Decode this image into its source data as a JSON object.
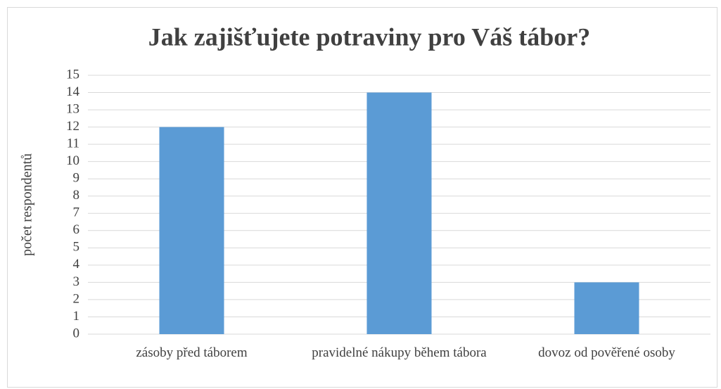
{
  "chart_data": {
    "type": "bar",
    "title": "Jak zajišťujete potraviny pro Váš tábor?",
    "y_label": "počet respondentů",
    "categories": [
      "zásoby před táborem",
      "pravidelné nákupy během tábora",
      "dovoz od pověřené osoby"
    ],
    "values": [
      12,
      14,
      3
    ],
    "color": "#5b9bd5",
    "ylim": [
      0,
      15
    ],
    "yticks": [
      0,
      1,
      2,
      3,
      4,
      5,
      6,
      7,
      8,
      9,
      10,
      11,
      12,
      13,
      14,
      15
    ],
    "grid": true
  }
}
